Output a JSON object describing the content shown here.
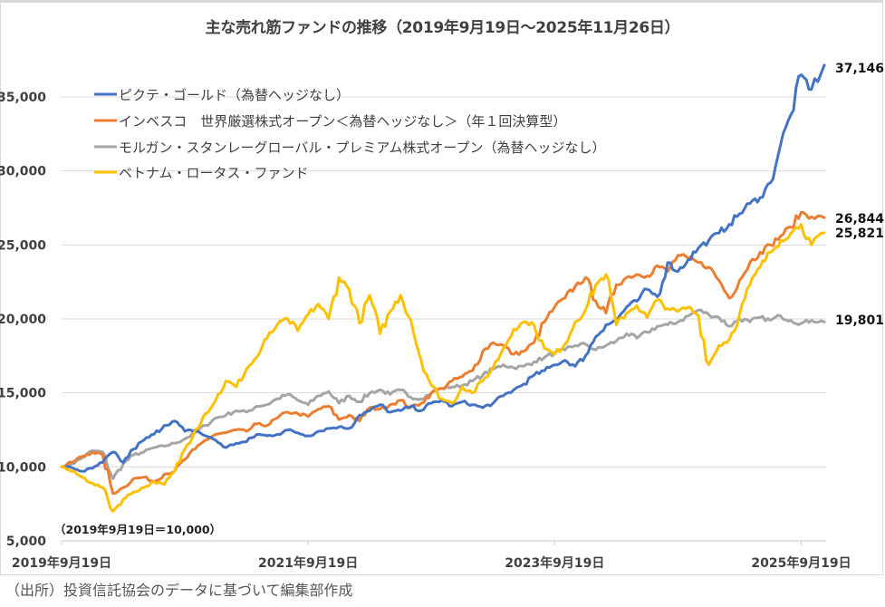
{
  "chart_data": {
    "type": "line",
    "title": "主な売れ筋ファンドの推移（2019年9月19日～2025年11月26日）",
    "xlabel": "",
    "ylabel": "",
    "ylim": [
      5000,
      37500
    ],
    "yticks": [
      5000,
      10000,
      15000,
      20000,
      25000,
      30000,
      35000
    ],
    "ytick_labels": [
      "5,000",
      "10,000",
      "15,000",
      "20,000",
      "25,000",
      "30,000",
      "35,000"
    ],
    "x_unit": "months since 2019-09-19",
    "xlim": [
      0,
      74.25
    ],
    "xticks": [
      0,
      24,
      48,
      72
    ],
    "xtick_labels": [
      "2019年9月19日",
      "2021年9月19日",
      "2023年9月19日",
      "2025年9月19日"
    ],
    "grid": true,
    "legend_position": "top-left",
    "annotation": "（2019年9月19日＝10,000）",
    "series": [
      {
        "name": "ピクテ・ゴールド（為替ヘッジなし）",
        "color": "#4472C4",
        "end_label": "37,146",
        "x": [
          0,
          1,
          2,
          3,
          4,
          5,
          6,
          7,
          8,
          9,
          10,
          11,
          12,
          13,
          14,
          15,
          16,
          17,
          18,
          19,
          20,
          21,
          22,
          23,
          24,
          25,
          26,
          27,
          28,
          29,
          30,
          31,
          32,
          33,
          34,
          35,
          36,
          37,
          38,
          39,
          40,
          41,
          42,
          43,
          44,
          45,
          46,
          47,
          48,
          49,
          50,
          51,
          52,
          53,
          54,
          55,
          56,
          57,
          58,
          59,
          60,
          61,
          62,
          63,
          64,
          65,
          66,
          67,
          68,
          69,
          70,
          71,
          72,
          73,
          74.25
        ],
        "values": [
          10000,
          9950,
          9700,
          9900,
          10300,
          11000,
          10300,
          11200,
          11800,
          12200,
          12800,
          13100,
          12400,
          12500,
          12100,
          11800,
          11300,
          11600,
          11700,
          12200,
          12100,
          12200,
          12500,
          12300,
          12100,
          12400,
          12600,
          12700,
          12600,
          13500,
          13800,
          14200,
          13700,
          13800,
          14100,
          13800,
          14300,
          14500,
          14100,
          14400,
          14200,
          14000,
          14300,
          14800,
          15200,
          15600,
          16200,
          16500,
          16900,
          17200,
          16800,
          17500,
          18800,
          19600,
          19900,
          20800,
          21200,
          22000,
          21500,
          23800,
          23200,
          24000,
          24800,
          25300,
          25800,
          26400,
          27100,
          27800,
          28200,
          29200,
          31800,
          33800,
          36500,
          35500,
          37146
        ]
      },
      {
        "name": "インベスコ　世界厳選株式オープン＜為替ヘッジなし＞（年１回決算型）",
        "color": "#ED7D31",
        "end_label": "26,844",
        "x": [
          0,
          1,
          2,
          3,
          4,
          5,
          6,
          7,
          8,
          9,
          10,
          11,
          12,
          13,
          14,
          15,
          16,
          17,
          18,
          19,
          20,
          21,
          22,
          23,
          24,
          25,
          26,
          27,
          28,
          29,
          30,
          31,
          32,
          33,
          34,
          35,
          36,
          37,
          38,
          39,
          40,
          41,
          42,
          43,
          44,
          45,
          46,
          47,
          48,
          49,
          50,
          51,
          52,
          53,
          54,
          55,
          56,
          57,
          58,
          59,
          60,
          61,
          62,
          63,
          64,
          65,
          66,
          67,
          68,
          69,
          70,
          71,
          72,
          73,
          74.25
        ],
        "values": [
          10000,
          10300,
          10700,
          11000,
          10800,
          8200,
          8600,
          9200,
          9300,
          9000,
          9500,
          9700,
          10500,
          11200,
          11800,
          12200,
          12300,
          12500,
          12400,
          12900,
          12800,
          13300,
          13700,
          13600,
          13400,
          13900,
          14100,
          13200,
          13500,
          13100,
          14000,
          13900,
          14200,
          14500,
          14000,
          14300,
          15000,
          15300,
          15800,
          16100,
          16500,
          17800,
          18400,
          18200,
          17600,
          17800,
          18400,
          19800,
          20800,
          21400,
          22200,
          22800,
          21200,
          20400,
          22300,
          22800,
          23000,
          22900,
          23600,
          23200,
          24300,
          24100,
          23800,
          23500,
          22600,
          21400,
          22600,
          23800,
          24500,
          25000,
          25600,
          26200,
          27200,
          26900,
          26844
        ]
      },
      {
        "name": "モルガン・スタンレーグローバル・プレミアム株式オープン（為替ヘッジなし）",
        "color": "#A5A5A5",
        "end_label": "19,801",
        "x": [
          0,
          1,
          2,
          3,
          4,
          5,
          6,
          7,
          8,
          9,
          10,
          11,
          12,
          13,
          14,
          15,
          16,
          17,
          18,
          19,
          20,
          21,
          22,
          23,
          24,
          25,
          26,
          27,
          28,
          29,
          30,
          31,
          32,
          33,
          34,
          35,
          36,
          37,
          38,
          39,
          40,
          41,
          42,
          43,
          44,
          45,
          46,
          47,
          48,
          49,
          50,
          51,
          52,
          53,
          54,
          55,
          56,
          57,
          58,
          59,
          60,
          61,
          62,
          63,
          64,
          65,
          66,
          67,
          68,
          69,
          70,
          71,
          72,
          73,
          74.25
        ],
        "values": [
          10000,
          10200,
          10600,
          11100,
          11000,
          9200,
          10200,
          10800,
          11000,
          11300,
          11400,
          11600,
          11900,
          12300,
          12800,
          13300,
          13500,
          13800,
          13700,
          14100,
          14200,
          14600,
          14900,
          14500,
          14200,
          14800,
          15100,
          14300,
          14800,
          14400,
          15000,
          15200,
          14900,
          15200,
          14700,
          14600,
          15000,
          15300,
          15400,
          15500,
          15800,
          16200,
          16600,
          16900,
          16700,
          16800,
          17100,
          17400,
          17700,
          17900,
          18200,
          18300,
          17900,
          18200,
          18500,
          19000,
          18700,
          19100,
          19500,
          19600,
          19800,
          20200,
          20600,
          20300,
          20100,
          19500,
          20000,
          19800,
          20100,
          19900,
          20200,
          19900,
          19700,
          19900,
          19801
        ]
      },
      {
        "name": "ベトナム・ロータス・ファンド",
        "color": "#FFC000",
        "end_label": "25,821",
        "x": [
          0,
          1,
          2,
          3,
          4,
          5,
          6,
          7,
          8,
          9,
          10,
          11,
          12,
          13,
          14,
          15,
          16,
          17,
          18,
          19,
          20,
          21,
          22,
          23,
          24,
          25,
          26,
          27,
          28,
          29,
          30,
          31,
          32,
          33,
          34,
          35,
          36,
          37,
          38,
          39,
          40,
          41,
          42,
          43,
          44,
          45,
          46,
          47,
          48,
          49,
          50,
          51,
          52,
          53,
          54,
          55,
          56,
          57,
          58,
          59,
          60,
          61,
          62,
          63,
          64,
          65,
          66,
          67,
          68,
          69,
          70,
          71,
          72,
          73,
          74.25
        ],
        "values": [
          10000,
          9700,
          9300,
          8900,
          8600,
          7000,
          7800,
          8300,
          8600,
          9000,
          8800,
          9700,
          11200,
          12500,
          13600,
          14500,
          15800,
          15400,
          16600,
          17400,
          18700,
          19600,
          20000,
          19200,
          20300,
          21000,
          20000,
          22800,
          22000,
          19700,
          21600,
          19000,
          20500,
          21600,
          19900,
          17200,
          15500,
          14600,
          14300,
          15400,
          15000,
          15800,
          16700,
          18000,
          19300,
          19800,
          19600,
          18000,
          17600,
          18300,
          19800,
          20600,
          22300,
          23000,
          19600,
          20400,
          20900,
          20100,
          21300,
          20700,
          20500,
          20800,
          20200,
          16900,
          18200,
          18600,
          20300,
          22300,
          23500,
          24500,
          25300,
          25800,
          26400,
          25000,
          25821
        ]
      }
    ]
  },
  "source_note": "（出所）投資信託協会のデータに基づいて編集部作成"
}
